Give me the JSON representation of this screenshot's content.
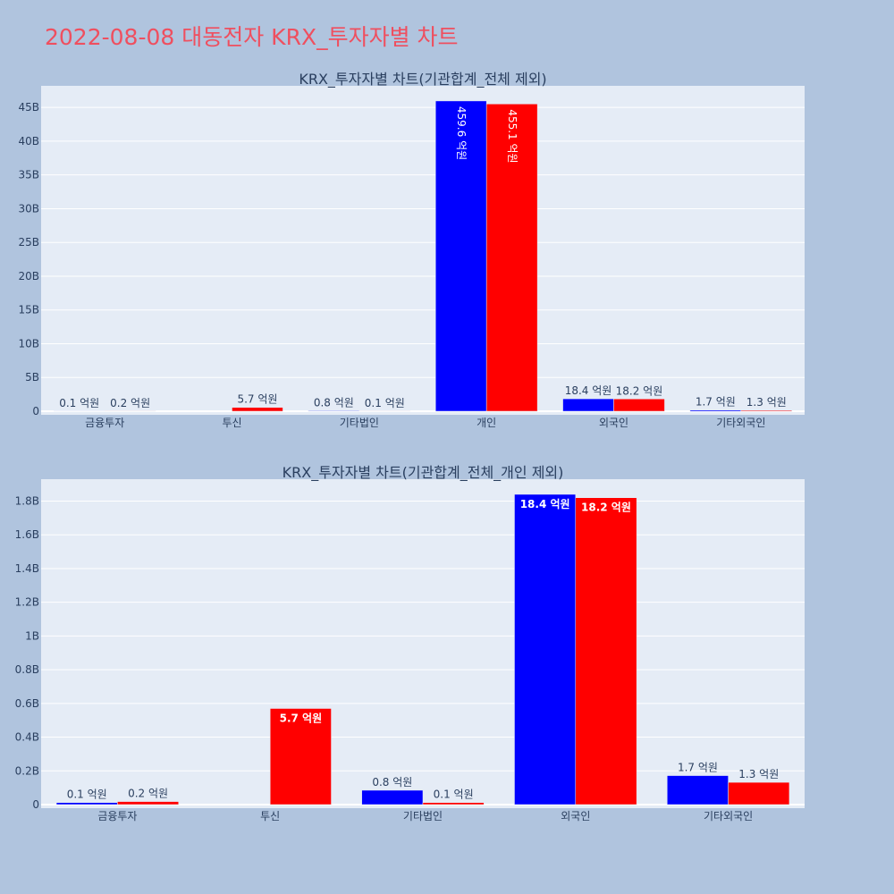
{
  "page": {
    "title": "2022-08-08 대동전자 KRX_투자자별 차트"
  },
  "colors": {
    "series_a": "#0000ff",
    "series_b": "#ff0000",
    "plot_bg": "#e5ecf6",
    "page_bg": "#b0c4de",
    "title": "#ef4f5f"
  },
  "chart_data": [
    {
      "type": "bar",
      "title": "KRX_투자자별 차트(기관합계_전체 제외)",
      "categories": [
        "금융투자",
        "투신",
        "기타법인",
        "개인",
        "외국인",
        "기타외국인"
      ],
      "series": [
        {
          "values": [
            0.01,
            0,
            0.08,
            45.96,
            1.84,
            0.17
          ],
          "labels": [
            "0.1 억원",
            "",
            "0.8 억원",
            "459.6 억원",
            "18.4 억원",
            "1.7 억원"
          ]
        },
        {
          "values": [
            0.02,
            0.57,
            0.01,
            45.51,
            1.82,
            0.13
          ],
          "labels": [
            "0.2 억원",
            "5.7 억원",
            "0.1 억원",
            "455.1 억원",
            "18.2 억원",
            "1.3 억원"
          ]
        }
      ],
      "ylim": [
        0,
        48.2
      ],
      "yticks": [
        0,
        5,
        10,
        15,
        20,
        25,
        30,
        35,
        40,
        45
      ],
      "ytick_labels": [
        "0",
        "5B",
        "10B",
        "15B",
        "20B",
        "25B",
        "30B",
        "35B",
        "40B",
        "45B"
      ],
      "grid": true,
      "barmode": "group"
    },
    {
      "type": "bar",
      "title": "KRX_투자자별 차트(기관합계_전체_개인 제외)",
      "categories": [
        "금융투자",
        "투신",
        "기타법인",
        "외국인",
        "기타외국인"
      ],
      "series": [
        {
          "values": [
            0.012,
            0,
            0.085,
            1.84,
            0.172
          ],
          "labels": [
            "0.1 억원",
            "",
            "0.8 억원",
            "18.4 억원",
            "1.7 억원"
          ]
        },
        {
          "values": [
            0.018,
            0.57,
            0.012,
            1.82,
            0.132
          ],
          "labels": [
            "0.2 억원",
            "5.7 억원",
            "0.1 억원",
            "18.2 억원",
            "1.3 억원"
          ]
        }
      ],
      "ylim": [
        0,
        1.93
      ],
      "yticks": [
        0,
        0.2,
        0.4,
        0.6,
        0.8,
        1.0,
        1.2,
        1.4,
        1.6,
        1.8
      ],
      "ytick_labels": [
        "0",
        "0.2B",
        "0.4B",
        "0.6B",
        "0.8B",
        "1B",
        "1.2B",
        "1.4B",
        "1.6B",
        "1.8B"
      ],
      "grid": true,
      "barmode": "group"
    }
  ]
}
